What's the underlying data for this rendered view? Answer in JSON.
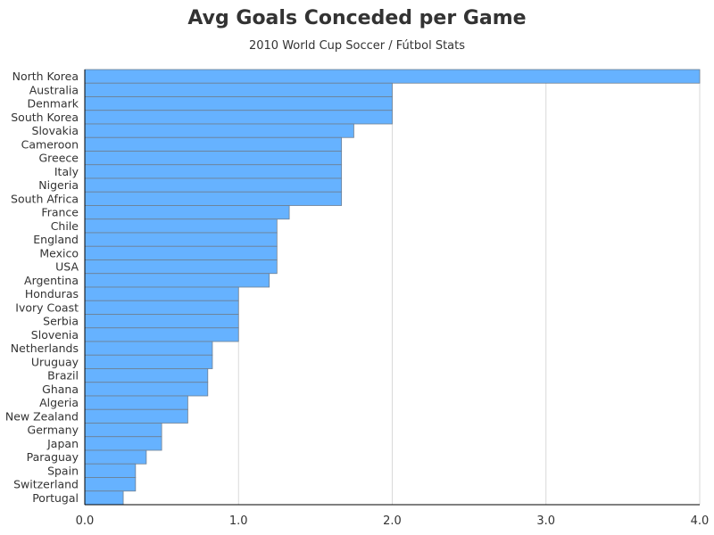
{
  "chart_data": {
    "type": "bar",
    "orientation": "horizontal",
    "title": "Avg Goals Conceded per Game",
    "subtitle": "2010 World Cup Soccer / Fútbol Stats",
    "xlabel": "",
    "ylabel": "",
    "xlim": [
      0,
      4
    ],
    "xticks": [
      "0.0",
      "1.0",
      "2.0",
      "3.0",
      "4.0"
    ],
    "grid": true,
    "colors": {
      "bar_fill": "#66b2ff",
      "bar_stroke": "#6e7f92",
      "grid": "#d9d9d9",
      "axis": "#000000"
    },
    "categories": [
      "North Korea",
      "Australia",
      "Denmark",
      "South Korea",
      "Slovakia",
      "Cameroon",
      "Greece",
      "Italy",
      "Nigeria",
      "South Africa",
      "France",
      "Chile",
      "England",
      "Mexico",
      "USA",
      "Argentina",
      "Honduras",
      "Ivory Coast",
      "Serbia",
      "Slovenia",
      "Netherlands",
      "Uruguay",
      "Brazil",
      "Ghana",
      "Algeria",
      "New Zealand",
      "Germany",
      "Japan",
      "Paraguay",
      "Spain",
      "Switzerland",
      "Portugal"
    ],
    "values": [
      4.0,
      2.0,
      2.0,
      2.0,
      1.75,
      1.67,
      1.67,
      1.67,
      1.67,
      1.67,
      1.33,
      1.25,
      1.25,
      1.25,
      1.25,
      1.2,
      1.0,
      1.0,
      1.0,
      1.0,
      0.83,
      0.83,
      0.8,
      0.8,
      0.67,
      0.67,
      0.5,
      0.5,
      0.4,
      0.33,
      0.33,
      0.25
    ]
  }
}
